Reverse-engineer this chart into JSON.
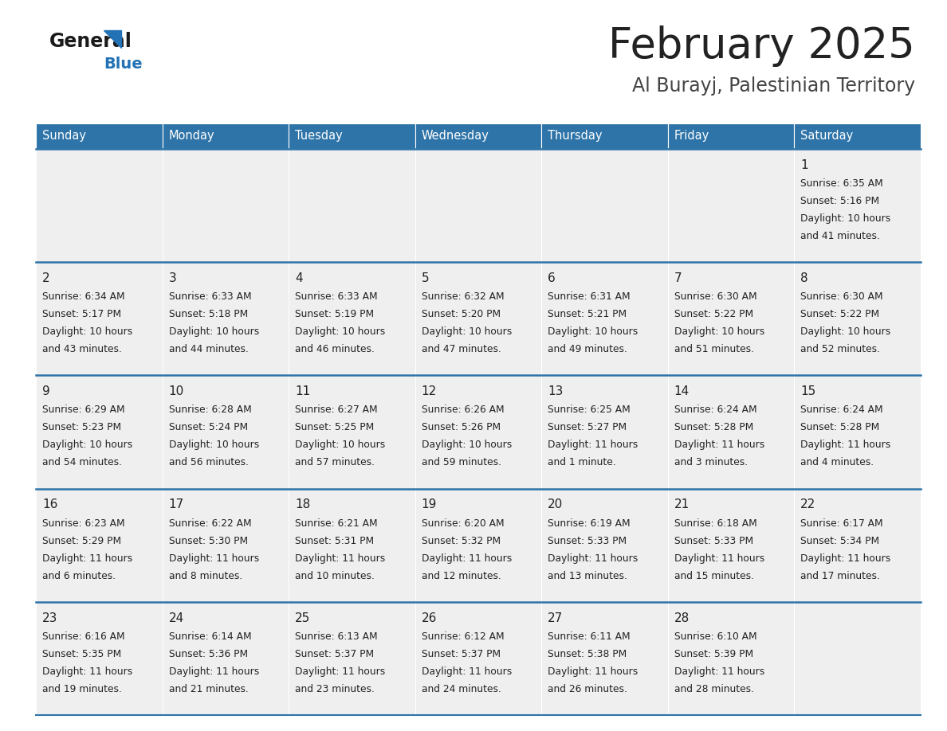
{
  "title": "February 2025",
  "subtitle": "Al Burayj, Palestinian Territory",
  "days_of_week": [
    "Sunday",
    "Monday",
    "Tuesday",
    "Wednesday",
    "Thursday",
    "Friday",
    "Saturday"
  ],
  "header_bg": "#2E74A8",
  "header_text": "#FFFFFF",
  "cell_bg": "#EFEFEF",
  "divider_color": "#2E74A8",
  "title_color": "#222222",
  "subtitle_color": "#444444",
  "day_number_color": "#222222",
  "cell_text_color": "#222222",
  "logo_general_color": "#1a1a1a",
  "logo_blue_color": "#2272B5",
  "calendar_data": [
    [
      null,
      null,
      null,
      null,
      null,
      null,
      {
        "day": "1",
        "sunrise": "6:35 AM",
        "sunset": "5:16 PM",
        "daylight1": "10 hours",
        "daylight2": "and 41 minutes."
      }
    ],
    [
      {
        "day": "2",
        "sunrise": "6:34 AM",
        "sunset": "5:17 PM",
        "daylight1": "10 hours",
        "daylight2": "and 43 minutes."
      },
      {
        "day": "3",
        "sunrise": "6:33 AM",
        "sunset": "5:18 PM",
        "daylight1": "10 hours",
        "daylight2": "and 44 minutes."
      },
      {
        "day": "4",
        "sunrise": "6:33 AM",
        "sunset": "5:19 PM",
        "daylight1": "10 hours",
        "daylight2": "and 46 minutes."
      },
      {
        "day": "5",
        "sunrise": "6:32 AM",
        "sunset": "5:20 PM",
        "daylight1": "10 hours",
        "daylight2": "and 47 minutes."
      },
      {
        "day": "6",
        "sunrise": "6:31 AM",
        "sunset": "5:21 PM",
        "daylight1": "10 hours",
        "daylight2": "and 49 minutes."
      },
      {
        "day": "7",
        "sunrise": "6:30 AM",
        "sunset": "5:22 PM",
        "daylight1": "10 hours",
        "daylight2": "and 51 minutes."
      },
      {
        "day": "8",
        "sunrise": "6:30 AM",
        "sunset": "5:22 PM",
        "daylight1": "10 hours",
        "daylight2": "and 52 minutes."
      }
    ],
    [
      {
        "day": "9",
        "sunrise": "6:29 AM",
        "sunset": "5:23 PM",
        "daylight1": "10 hours",
        "daylight2": "and 54 minutes."
      },
      {
        "day": "10",
        "sunrise": "6:28 AM",
        "sunset": "5:24 PM",
        "daylight1": "10 hours",
        "daylight2": "and 56 minutes."
      },
      {
        "day": "11",
        "sunrise": "6:27 AM",
        "sunset": "5:25 PM",
        "daylight1": "10 hours",
        "daylight2": "and 57 minutes."
      },
      {
        "day": "12",
        "sunrise": "6:26 AM",
        "sunset": "5:26 PM",
        "daylight1": "10 hours",
        "daylight2": "and 59 minutes."
      },
      {
        "day": "13",
        "sunrise": "6:25 AM",
        "sunset": "5:27 PM",
        "daylight1": "11 hours",
        "daylight2": "and 1 minute."
      },
      {
        "day": "14",
        "sunrise": "6:24 AM",
        "sunset": "5:28 PM",
        "daylight1": "11 hours",
        "daylight2": "and 3 minutes."
      },
      {
        "day": "15",
        "sunrise": "6:24 AM",
        "sunset": "5:28 PM",
        "daylight1": "11 hours",
        "daylight2": "and 4 minutes."
      }
    ],
    [
      {
        "day": "16",
        "sunrise": "6:23 AM",
        "sunset": "5:29 PM",
        "daylight1": "11 hours",
        "daylight2": "and 6 minutes."
      },
      {
        "day": "17",
        "sunrise": "6:22 AM",
        "sunset": "5:30 PM",
        "daylight1": "11 hours",
        "daylight2": "and 8 minutes."
      },
      {
        "day": "18",
        "sunrise": "6:21 AM",
        "sunset": "5:31 PM",
        "daylight1": "11 hours",
        "daylight2": "and 10 minutes."
      },
      {
        "day": "19",
        "sunrise": "6:20 AM",
        "sunset": "5:32 PM",
        "daylight1": "11 hours",
        "daylight2": "and 12 minutes."
      },
      {
        "day": "20",
        "sunrise": "6:19 AM",
        "sunset": "5:33 PM",
        "daylight1": "11 hours",
        "daylight2": "and 13 minutes."
      },
      {
        "day": "21",
        "sunrise": "6:18 AM",
        "sunset": "5:33 PM",
        "daylight1": "11 hours",
        "daylight2": "and 15 minutes."
      },
      {
        "day": "22",
        "sunrise": "6:17 AM",
        "sunset": "5:34 PM",
        "daylight1": "11 hours",
        "daylight2": "and 17 minutes."
      }
    ],
    [
      {
        "day": "23",
        "sunrise": "6:16 AM",
        "sunset": "5:35 PM",
        "daylight1": "11 hours",
        "daylight2": "and 19 minutes."
      },
      {
        "day": "24",
        "sunrise": "6:14 AM",
        "sunset": "5:36 PM",
        "daylight1": "11 hours",
        "daylight2": "and 21 minutes."
      },
      {
        "day": "25",
        "sunrise": "6:13 AM",
        "sunset": "5:37 PM",
        "daylight1": "11 hours",
        "daylight2": "and 23 minutes."
      },
      {
        "day": "26",
        "sunrise": "6:12 AM",
        "sunset": "5:37 PM",
        "daylight1": "11 hours",
        "daylight2": "and 24 minutes."
      },
      {
        "day": "27",
        "sunrise": "6:11 AM",
        "sunset": "5:38 PM",
        "daylight1": "11 hours",
        "daylight2": "and 26 minutes."
      },
      {
        "day": "28",
        "sunrise": "6:10 AM",
        "sunset": "5:39 PM",
        "daylight1": "11 hours",
        "daylight2": "and 28 minutes."
      },
      null
    ]
  ]
}
